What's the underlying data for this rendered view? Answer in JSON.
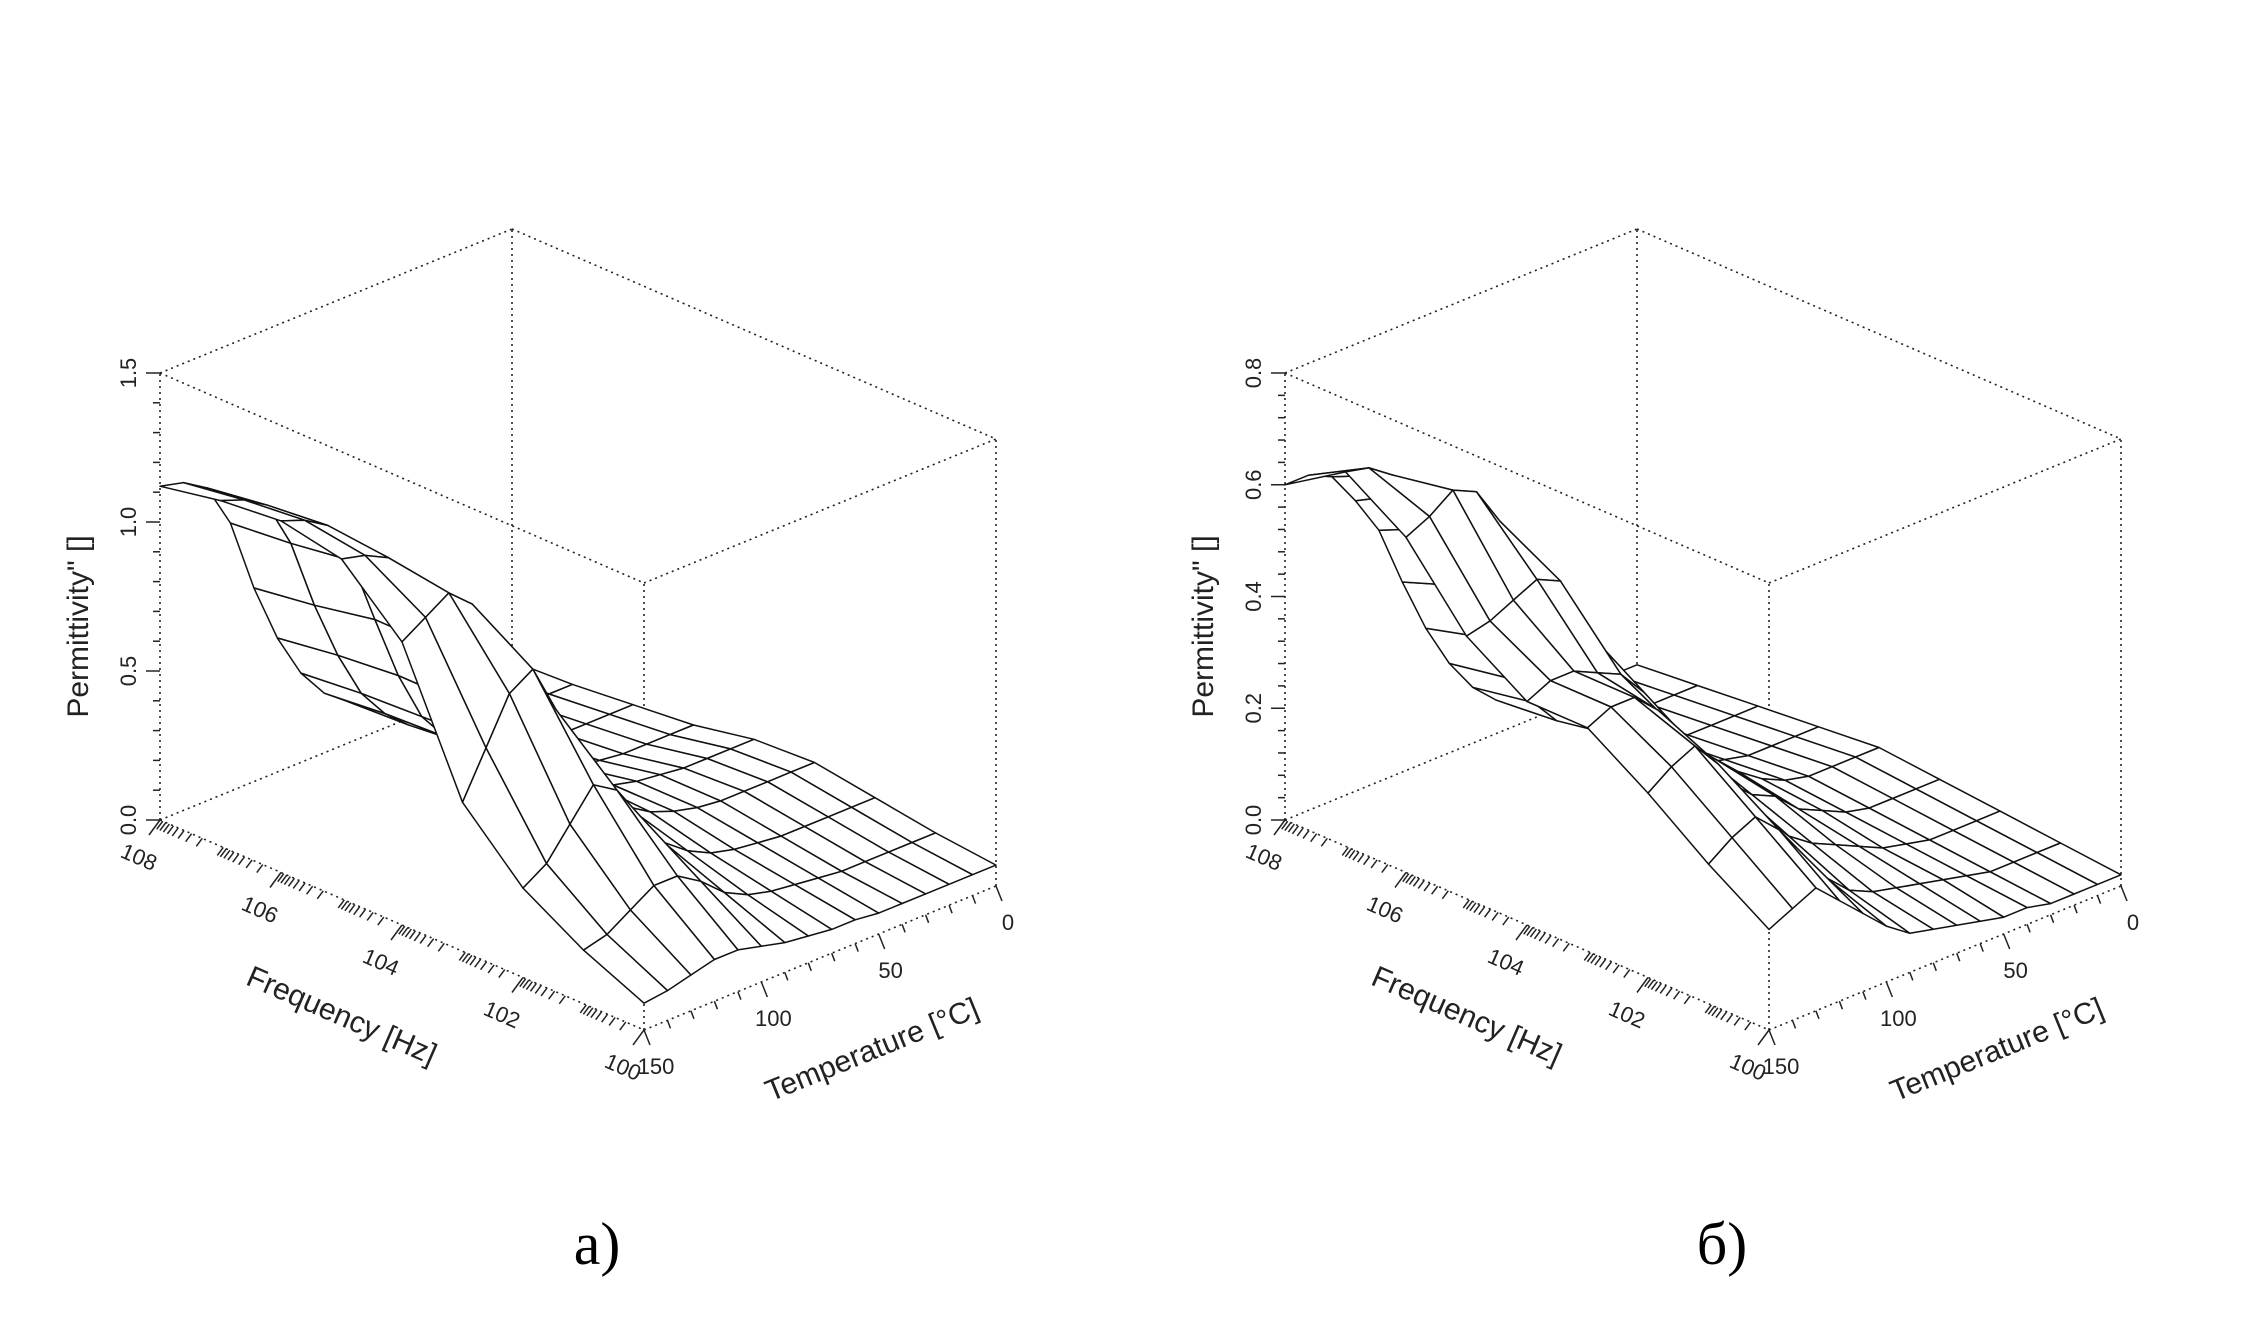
{
  "chart_data": [
    {
      "type": "surface",
      "caption": "а)",
      "xlabel": "Frequency [Hz]",
      "ylabel": "Temperature [°C]",
      "zlabel": "Permittivity\" []",
      "x_ticks": [
        "108",
        "106",
        "104",
        "102",
        "100"
      ],
      "x_tick_values_log10_hz": [
        8,
        6,
        4,
        2,
        0
      ],
      "y_ticks": [
        "0",
        "50",
        "100",
        "150"
      ],
      "y_tick_values": [
        0,
        50,
        100,
        150
      ],
      "z_ticks": [
        "0.0",
        "0.5",
        "1.0",
        "1.5"
      ],
      "z_tick_values": [
        0.0,
        0.5,
        1.0,
        1.5
      ],
      "zlim": [
        0,
        1.5
      ],
      "temperature_grid": [
        0,
        10,
        20,
        30,
        40,
        50,
        60,
        70,
        80,
        90,
        100,
        110,
        120,
        130,
        140,
        150
      ],
      "frequency_grid_log10_hz": [
        8,
        7,
        6,
        5,
        4,
        3,
        2,
        1,
        0
      ],
      "z_values": [
        [
          0.05,
          0.05,
          0.05,
          0.05,
          0.06,
          0.07,
          0.1,
          0.14,
          0.2,
          0.3,
          0.45,
          0.65,
          0.9,
          1.05,
          1.1,
          1.12
        ],
        [
          0.06,
          0.06,
          0.06,
          0.06,
          0.07,
          0.08,
          0.11,
          0.15,
          0.22,
          0.32,
          0.48,
          0.68,
          0.92,
          1.08,
          1.13,
          1.16
        ],
        [
          0.08,
          0.08,
          0.08,
          0.08,
          0.09,
          0.1,
          0.12,
          0.17,
          0.23,
          0.33,
          0.5,
          0.72,
          0.95,
          1.1,
          1.15,
          1.18
        ],
        [
          0.1,
          0.1,
          0.1,
          0.1,
          0.11,
          0.12,
          0.14,
          0.18,
          0.24,
          0.34,
          0.5,
          0.72,
          0.95,
          1.08,
          1.12,
          1.14
        ],
        [
          0.14,
          0.14,
          0.14,
          0.14,
          0.15,
          0.16,
          0.18,
          0.22,
          0.28,
          0.38,
          0.52,
          0.75,
          0.98,
          1.05,
          1.0,
          0.95
        ],
        [
          0.15,
          0.15,
          0.15,
          0.15,
          0.15,
          0.16,
          0.18,
          0.21,
          0.26,
          0.34,
          0.48,
          0.68,
          0.85,
          0.8,
          0.65,
          0.5
        ],
        [
          0.12,
          0.12,
          0.12,
          0.12,
          0.12,
          0.13,
          0.14,
          0.16,
          0.2,
          0.26,
          0.38,
          0.5,
          0.55,
          0.45,
          0.35,
          0.3
        ],
        [
          0.09,
          0.09,
          0.09,
          0.09,
          0.09,
          0.1,
          0.11,
          0.12,
          0.14,
          0.18,
          0.25,
          0.3,
          0.3,
          0.25,
          0.2,
          0.18
        ],
        [
          0.07,
          0.07,
          0.07,
          0.07,
          0.07,
          0.07,
          0.08,
          0.08,
          0.09,
          0.1,
          0.12,
          0.14,
          0.14,
          0.12,
          0.1,
          0.09
        ]
      ]
    },
    {
      "type": "surface",
      "caption": "б)",
      "xlabel": "Frequency [Hz]",
      "ylabel": "Temperature [°C]",
      "zlabel": "Permittivity\" []",
      "x_ticks": [
        "108",
        "106",
        "104",
        "102",
        "100"
      ],
      "x_tick_values_log10_hz": [
        8,
        6,
        4,
        2,
        0
      ],
      "y_ticks": [
        "0",
        "50",
        "100",
        "150"
      ],
      "y_tick_values": [
        0,
        50,
        100,
        150
      ],
      "z_ticks": [
        "0.0",
        "0.2",
        "0.4",
        "0.6",
        "0.8"
      ],
      "z_tick_values": [
        0.0,
        0.2,
        0.4,
        0.6,
        0.8
      ],
      "zlim": [
        0,
        0.8
      ],
      "temperature_grid": [
        0,
        10,
        20,
        30,
        40,
        50,
        60,
        70,
        80,
        90,
        100,
        110,
        120,
        130,
        140,
        150
      ],
      "frequency_grid_log10_hz": [
        8,
        7,
        6,
        5,
        4,
        3,
        2,
        1,
        0
      ],
      "z_values": [
        [
          0.02,
          0.02,
          0.02,
          0.02,
          0.03,
          0.04,
          0.06,
          0.1,
          0.16,
          0.24,
          0.34,
          0.45,
          0.52,
          0.58,
          0.6,
          0.6
        ],
        [
          0.03,
          0.03,
          0.03,
          0.03,
          0.04,
          0.05,
          0.07,
          0.12,
          0.18,
          0.27,
          0.38,
          0.5,
          0.58,
          0.63,
          0.66,
          0.67
        ],
        [
          0.04,
          0.04,
          0.04,
          0.04,
          0.05,
          0.06,
          0.09,
          0.14,
          0.2,
          0.3,
          0.42,
          0.56,
          0.63,
          0.65,
          0.62,
          0.6
        ],
        [
          0.05,
          0.05,
          0.05,
          0.05,
          0.06,
          0.07,
          0.1,
          0.15,
          0.22,
          0.3,
          0.4,
          0.5,
          0.52,
          0.5,
          0.48,
          0.47
        ],
        [
          0.06,
          0.06,
          0.06,
          0.06,
          0.07,
          0.09,
          0.12,
          0.16,
          0.2,
          0.26,
          0.33,
          0.38,
          0.4,
          0.42,
          0.42,
          0.4
        ],
        [
          0.05,
          0.05,
          0.05,
          0.05,
          0.06,
          0.08,
          0.1,
          0.14,
          0.16,
          0.2,
          0.26,
          0.32,
          0.38,
          0.42,
          0.42,
          0.4
        ],
        [
          0.04,
          0.04,
          0.04,
          0.04,
          0.05,
          0.06,
          0.08,
          0.1,
          0.12,
          0.15,
          0.2,
          0.26,
          0.33,
          0.38,
          0.36,
          0.33
        ],
        [
          0.03,
          0.03,
          0.03,
          0.03,
          0.04,
          0.05,
          0.06,
          0.07,
          0.08,
          0.1,
          0.14,
          0.2,
          0.26,
          0.3,
          0.28,
          0.25
        ],
        [
          0.02,
          0.02,
          0.02,
          0.02,
          0.03,
          0.03,
          0.04,
          0.05,
          0.06,
          0.07,
          0.1,
          0.14,
          0.18,
          0.22,
          0.2,
          0.18
        ]
      ]
    }
  ]
}
